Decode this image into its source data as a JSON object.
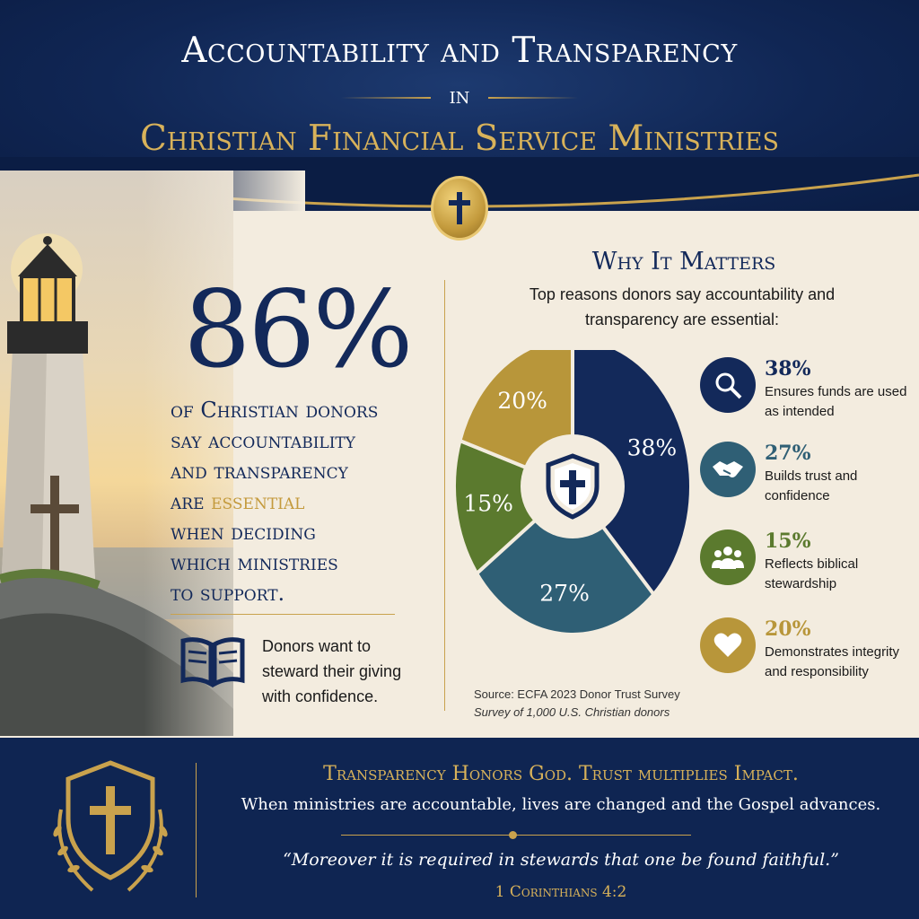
{
  "header": {
    "title": "Accountability and Transparency",
    "connector": "in",
    "subtitle": "Christian Financial Service Ministries"
  },
  "stat": {
    "value": "86%",
    "lines": [
      "of Christian donors",
      "say accountability",
      "and transparency"
    ],
    "line4_prefix": "are ",
    "line4_highlight": "essential",
    "lines_after": [
      "when deciding",
      "which ministries",
      "to support."
    ]
  },
  "donor_note": "Donors want to steward their giving with confidence.",
  "why": {
    "title": "Why It Matters",
    "subtitle": "Top reasons donors say accountability and transparency are essential:"
  },
  "chart_data": {
    "type": "pie",
    "categories": [
      "Ensures funds are used as intended",
      "Builds trust and confidence",
      "Reflects biblical stewardship",
      "Demonstrates integrity and responsibility"
    ],
    "values": [
      38,
      27,
      15,
      20
    ],
    "labels": [
      "38%",
      "27%",
      "15%",
      "20%"
    ],
    "colors": [
      "#13295a",
      "#2f5f75",
      "#5b7a2e",
      "#b8963a"
    ],
    "title": "",
    "legend": "right"
  },
  "reasons": [
    {
      "pct": "38%",
      "desc": "Ensures funds are used as intended",
      "color": "#13295a",
      "icon": "magnifier-icon"
    },
    {
      "pct": "27%",
      "desc": "Builds trust and confidence",
      "color": "#2f5f75",
      "icon": "handshake-icon"
    },
    {
      "pct": "15%",
      "desc": "Reflects biblical stewardship",
      "color": "#5b7a2e",
      "icon": "people-icon"
    },
    {
      "pct": "20%",
      "desc": "Demonstrates integrity and responsibility",
      "color": "#b8963a",
      "icon": "heart-icon"
    }
  ],
  "source": {
    "line1": "Source: ECFA 2023 Donor Trust Survey",
    "line2": "Survey of 1,000 U.S. Christian donors"
  },
  "footer": {
    "headline": "Transparency Honors God. Trust multiplies Impact.",
    "body": "When ministries are accountable, lives are changed and the Gospel advances.",
    "quote": "“Moreover it is required in stewards that one be found faithful.”",
    "verse": "1 Corinthians 4:2"
  }
}
